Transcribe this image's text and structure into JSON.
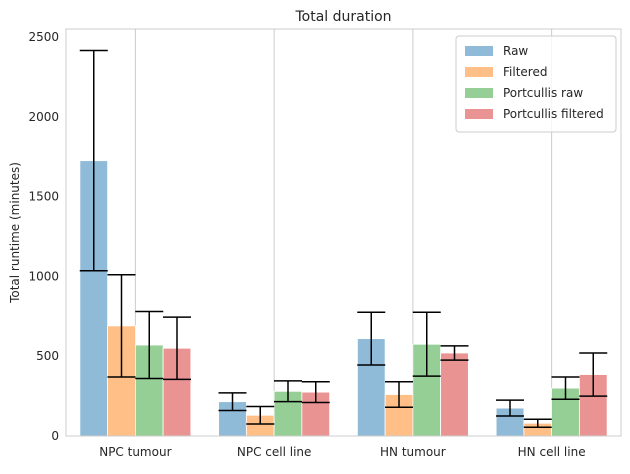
{
  "chart_data": {
    "type": "bar",
    "title": "Total duration",
    "xlabel": "",
    "ylabel": "Total runtime (minutes)",
    "ylim": [
      0,
      2550
    ],
    "yticks": [
      0,
      500,
      1000,
      1500,
      2000,
      2500
    ],
    "categories": [
      "NPC tumour",
      "NPC cell line",
      "HN tumour",
      "HN cell line"
    ],
    "grid": "x-only",
    "legend_position": "top-right",
    "series": [
      {
        "name": "Raw",
        "color": "#1f77b4",
        "values": [
          1725,
          215,
          610,
          175
        ],
        "err": [
          690,
          55,
          165,
          50
        ]
      },
      {
        "name": "Filtered",
        "color": "#ff7f0e",
        "values": [
          690,
          130,
          260,
          80
        ],
        "err": [
          320,
          55,
          80,
          25
        ]
      },
      {
        "name": "Portcullis raw",
        "color": "#2ca02c",
        "values": [
          570,
          280,
          575,
          300
        ],
        "err": [
          210,
          65,
          200,
          70
        ]
      },
      {
        "name": "Portcullis filtered",
        "color": "#d62728",
        "values": [
          550,
          275,
          520,
          385
        ],
        "err": [
          195,
          65,
          45,
          135
        ]
      }
    ]
  }
}
